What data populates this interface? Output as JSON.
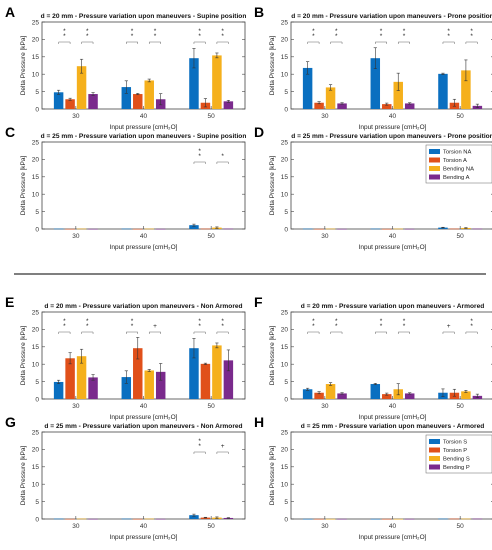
{
  "figure": {
    "separator": true
  },
  "colors": {
    "torsion": "#0a6fc0",
    "torsion2": "#e0501a",
    "bending": "#f5b01c",
    "bending2": "#7a2a8c",
    "error": "#333333"
  },
  "chart_data": [
    {
      "type": "bar",
      "panel": "A",
      "title": "d = 20 mm - Pressure variation upon maneuvers - Supine position",
      "xlabel": "Input pressure [cmH₂O]",
      "ylabel": "Delta Pressure [kPa]",
      "categories": [
        "30",
        "40",
        "50"
      ],
      "ylim": [
        0,
        25
      ],
      "yticks": [
        0,
        5,
        10,
        15,
        20,
        25
      ],
      "grid": false,
      "series": [
        {
          "name": "Torsion NA",
          "values": [
            4.8,
            6.3,
            14.6
          ],
          "errors": [
            0.6,
            1.8,
            2.8
          ]
        },
        {
          "name": "Torsion A",
          "values": [
            2.8,
            4.3,
            1.8
          ],
          "errors": [
            0.3,
            0.2,
            1.2
          ]
        },
        {
          "name": "Bending NA",
          "values": [
            12.3,
            8.2,
            15.4
          ],
          "errors": [
            2.0,
            0.4,
            0.7
          ]
        },
        {
          "name": "Bending A",
          "values": [
            4.3,
            2.8,
            2.2
          ],
          "errors": [
            0.4,
            1.6,
            0.3
          ]
        }
      ],
      "annotations": [
        {
          "label": "*",
          "groups": [
            [
              0,
              0,
              1
            ],
            [
              0,
              2,
              3
            ],
            [
              1,
              0,
              1
            ],
            [
              1,
              2,
              3
            ],
            [
              2,
              0,
              1
            ],
            [
              2,
              2,
              3
            ]
          ]
        },
        {
          "label": "*",
          "groups": [
            [
              0,
              0,
              1
            ],
            [
              0,
              2,
              3
            ],
            [
              1,
              0,
              1
            ],
            [
              1,
              2,
              3
            ],
            [
              2,
              0,
              1
            ],
            [
              2,
              2,
              3
            ]
          ],
          "row": 2
        }
      ]
    },
    {
      "type": "bar",
      "panel": "B",
      "title": "d = 20 mm - Pressure variation upon maneuvers - Prone position",
      "xlabel": "Input pressure [cmH₂O]",
      "ylabel": "Delta Pressure [kPa]",
      "categories": [
        "30",
        "40",
        "50"
      ],
      "ylim": [
        0,
        25
      ],
      "yticks": [
        0,
        5,
        10,
        15,
        20,
        25
      ],
      "grid": false,
      "series": [
        {
          "name": "Torsion NA",
          "values": [
            11.8,
            14.6,
            10.1
          ],
          "errors": [
            1.8,
            3.0,
            0.2
          ]
        },
        {
          "name": "Torsion A",
          "values": [
            1.8,
            1.4,
            1.8
          ],
          "errors": [
            0.3,
            0.3,
            1.0
          ]
        },
        {
          "name": "Bending NA",
          "values": [
            6.2,
            7.8,
            11.1
          ],
          "errors": [
            0.8,
            2.5,
            3.0
          ]
        },
        {
          "name": "Bending A",
          "values": [
            1.6,
            1.6,
            0.9
          ],
          "errors": [
            0.2,
            0.2,
            0.5
          ]
        }
      ],
      "annotations": [
        {
          "label": "*",
          "groups": [
            [
              0,
              0,
              1
            ],
            [
              0,
              2,
              3
            ],
            [
              1,
              0,
              1
            ],
            [
              1,
              2,
              3
            ],
            [
              2,
              0,
              1
            ],
            [
              2,
              2,
              3
            ]
          ]
        },
        {
          "label": "*",
          "groups": [
            [
              0,
              0,
              1
            ],
            [
              0,
              2,
              3
            ],
            [
              1,
              0,
              1
            ],
            [
              1,
              2,
              3
            ],
            [
              2,
              0,
              1
            ],
            [
              2,
              2,
              3
            ]
          ],
          "row": 2
        }
      ]
    },
    {
      "type": "bar",
      "panel": "C",
      "title": "d = 25 mm - Pressure variation upon maneuvers - Supine position",
      "xlabel": "Input pressure [cmH₂O]",
      "ylabel": "Delta Pressure [kPa]",
      "categories": [
        "30",
        "40",
        "50"
      ],
      "ylim": [
        0,
        25
      ],
      "yticks": [
        0,
        5,
        10,
        15,
        20,
        25
      ],
      "grid": false,
      "series": [
        {
          "name": "Torsion NA",
          "values": [
            0.1,
            0.1,
            1.1
          ],
          "errors": [
            0,
            0,
            0.3
          ]
        },
        {
          "name": "Torsion A",
          "values": [
            0.05,
            0.05,
            0.1
          ],
          "errors": [
            0,
            0,
            0
          ]
        },
        {
          "name": "Bending NA",
          "values": [
            0.1,
            0.1,
            0.4
          ],
          "errors": [
            0,
            0,
            0.2
          ]
        },
        {
          "name": "Bending A",
          "values": [
            0.05,
            0.05,
            0.1
          ],
          "errors": [
            0,
            0,
            0
          ]
        }
      ],
      "annotations": [
        {
          "label": "*",
          "groups": [
            [
              2,
              0,
              1
            ],
            [
              2,
              2,
              3
            ]
          ]
        },
        {
          "label": "*",
          "groups": [
            [
              2,
              0,
              1
            ]
          ],
          "row": 2
        }
      ]
    },
    {
      "type": "bar",
      "panel": "D",
      "title": "d = 25 mm - Pressure variation upon maneuvers - Prone position",
      "xlabel": "Input pressure [cmH₂O]",
      "ylabel": "Delta Pressure [kPa]",
      "categories": [
        "30",
        "40",
        "50"
      ],
      "ylim": [
        0,
        25
      ],
      "yticks": [
        0,
        5,
        10,
        15,
        20,
        25
      ],
      "grid": false,
      "legend": "top-right",
      "series": [
        {
          "name": "Torsion NA",
          "values": [
            0.1,
            0.1,
            0.4
          ],
          "errors": [
            0,
            0,
            0.1
          ]
        },
        {
          "name": "Torsion A",
          "values": [
            0.05,
            0.05,
            0.1
          ],
          "errors": [
            0,
            0,
            0
          ]
        },
        {
          "name": "Bending NA",
          "values": [
            0.1,
            0.1,
            0.3
          ],
          "errors": [
            0,
            0,
            0.1
          ]
        },
        {
          "name": "Bending A",
          "values": [
            0.05,
            0.05,
            0.1
          ],
          "errors": [
            0,
            0,
            0
          ]
        }
      ],
      "annotations": [
        {
          "label": "*",
          "groups": [
            [
              2,
              0,
              1
            ],
            [
              2,
              2,
              3
            ]
          ]
        },
        {
          "label": "*",
          "groups": [
            [
              2,
              0,
              1
            ],
            [
              2,
              2,
              3
            ]
          ],
          "row": 2
        }
      ]
    },
    {
      "type": "bar",
      "panel": "E",
      "title": "d = 20 mm - Pressure variation upon maneuvers - Non Armored",
      "xlabel": "Input pressure [cmH₂O]",
      "ylabel": "Delta Pressure [kPa]",
      "categories": [
        "30",
        "40",
        "50"
      ],
      "ylim": [
        0,
        25
      ],
      "yticks": [
        0,
        5,
        10,
        15,
        20,
        25
      ],
      "grid": false,
      "series": [
        {
          "name": "Torsion S",
          "values": [
            4.9,
            6.3,
            14.6
          ],
          "errors": [
            0.5,
            1.8,
            2.8
          ]
        },
        {
          "name": "Torsion P",
          "values": [
            11.7,
            14.6,
            10.1
          ],
          "errors": [
            1.6,
            3.1,
            0.2
          ]
        },
        {
          "name": "Bending S",
          "values": [
            12.3,
            8.2,
            15.4
          ],
          "errors": [
            2.0,
            0.3,
            0.7
          ]
        },
        {
          "name": "Bending P",
          "values": [
            6.2,
            7.8,
            11.1
          ],
          "errors": [
            0.8,
            2.4,
            3.0
          ]
        }
      ],
      "annotations": [
        {
          "label": "*",
          "groups": [
            [
              0,
              0,
              1
            ],
            [
              0,
              2,
              3
            ],
            [
              1,
              0,
              1
            ],
            [
              2,
              0,
              1
            ],
            [
              2,
              2,
              3
            ]
          ]
        },
        {
          "label": "+",
          "groups": [
            [
              1,
              2,
              3
            ]
          ]
        },
        {
          "label": "*",
          "groups": [
            [
              0,
              0,
              1
            ],
            [
              0,
              2,
              3
            ],
            [
              1,
              0,
              1
            ],
            [
              2,
              0,
              1
            ],
            [
              2,
              2,
              3
            ]
          ],
          "row": 2
        }
      ]
    },
    {
      "type": "bar",
      "panel": "F",
      "title": "d = 20 mm - Pressure variation upon maneuvers - Armored",
      "xlabel": "Input pressure [cmH₂O]",
      "ylabel": "Delta Pressure [kPa]",
      "categories": [
        "30",
        "40",
        "50"
      ],
      "ylim": [
        0,
        25
      ],
      "yticks": [
        0,
        5,
        10,
        15,
        20,
        25
      ],
      "grid": false,
      "series": [
        {
          "name": "Torsion S",
          "values": [
            2.8,
            4.3,
            1.8
          ],
          "errors": [
            0.3,
            0.2,
            1.1
          ]
        },
        {
          "name": "Torsion P",
          "values": [
            1.8,
            1.4,
            1.8
          ],
          "errors": [
            0.3,
            0.3,
            1.0
          ]
        },
        {
          "name": "Bending S",
          "values": [
            4.3,
            2.8,
            2.2
          ],
          "errors": [
            0.4,
            1.6,
            0.3
          ]
        },
        {
          "name": "Bending P",
          "values": [
            1.6,
            1.6,
            0.9
          ],
          "errors": [
            0.2,
            0.2,
            0.5
          ]
        }
      ],
      "annotations": [
        {
          "label": "*",
          "groups": [
            [
              0,
              0,
              1
            ],
            [
              0,
              2,
              3
            ],
            [
              1,
              0,
              1
            ],
            [
              1,
              2,
              3
            ],
            [
              2,
              2,
              3
            ]
          ]
        },
        {
          "label": "+",
          "groups": [
            [
              2,
              0,
              1
            ]
          ]
        },
        {
          "label": "*",
          "groups": [
            [
              0,
              0,
              1
            ],
            [
              0,
              2,
              3
            ],
            [
              1,
              0,
              1
            ],
            [
              1,
              2,
              3
            ],
            [
              2,
              2,
              3
            ]
          ],
          "row": 2
        }
      ]
    },
    {
      "type": "bar",
      "panel": "G",
      "title": "d = 25 mm - Pressure variation upon maneuvers - Non Armored",
      "xlabel": "Input pressure [cmH₂O]",
      "ylabel": "Delta Pressure [kPa]",
      "categories": [
        "30",
        "40",
        "50"
      ],
      "ylim": [
        0,
        25
      ],
      "yticks": [
        0,
        5,
        10,
        15,
        20,
        25
      ],
      "grid": false,
      "series": [
        {
          "name": "Torsion S",
          "values": [
            0.1,
            0.1,
            1.1
          ],
          "errors": [
            0,
            0,
            0.3
          ]
        },
        {
          "name": "Torsion P",
          "values": [
            0.05,
            0.05,
            0.4
          ],
          "errors": [
            0,
            0,
            0.1
          ]
        },
        {
          "name": "Bending S",
          "values": [
            0.1,
            0.1,
            0.4
          ],
          "errors": [
            0,
            0,
            0.2
          ]
        },
        {
          "name": "Bending P",
          "values": [
            0.05,
            0.05,
            0.3
          ],
          "errors": [
            0,
            0,
            0.1
          ]
        }
      ],
      "annotations": [
        {
          "label": "*",
          "groups": [
            [
              2,
              0,
              1
            ]
          ]
        },
        {
          "label": "+",
          "groups": [
            [
              2,
              2,
              3
            ]
          ]
        },
        {
          "label": "*",
          "groups": [
            [
              2,
              0,
              1
            ]
          ],
          "row": 2
        }
      ]
    },
    {
      "type": "bar",
      "panel": "H",
      "title": "d = 25 mm - Pressure variation upon maneuvers - Armored",
      "xlabel": "Input pressure [cmH₂O]",
      "ylabel": "Delta Pressure [kPa]",
      "categories": [
        "30",
        "40",
        "50"
      ],
      "ylim": [
        0,
        25
      ],
      "yticks": [
        0,
        5,
        10,
        15,
        20,
        25
      ],
      "grid": false,
      "legend": "top-right",
      "series": [
        {
          "name": "Torsion S",
          "values": [
            0.05,
            0.05,
            0.1
          ],
          "errors": [
            0,
            0,
            0
          ]
        },
        {
          "name": "Torsion P",
          "values": [
            0.05,
            0.05,
            0.1
          ],
          "errors": [
            0,
            0,
            0
          ]
        },
        {
          "name": "Bending S",
          "values": [
            0.05,
            0.05,
            0.1
          ],
          "errors": [
            0,
            0,
            0
          ]
        },
        {
          "name": "Bending P",
          "values": [
            0.05,
            0.05,
            0.1
          ],
          "errors": [
            0,
            0,
            0
          ]
        }
      ],
      "annotations": [
        {
          "label": "*",
          "groups": [
            [
              2,
              0,
              1
            ],
            [
              2,
              2,
              3
            ]
          ]
        },
        {
          "label": "*",
          "groups": [
            [
              2,
              0,
              1
            ],
            [
              2,
              2,
              3
            ]
          ],
          "row": 2
        }
      ]
    }
  ]
}
